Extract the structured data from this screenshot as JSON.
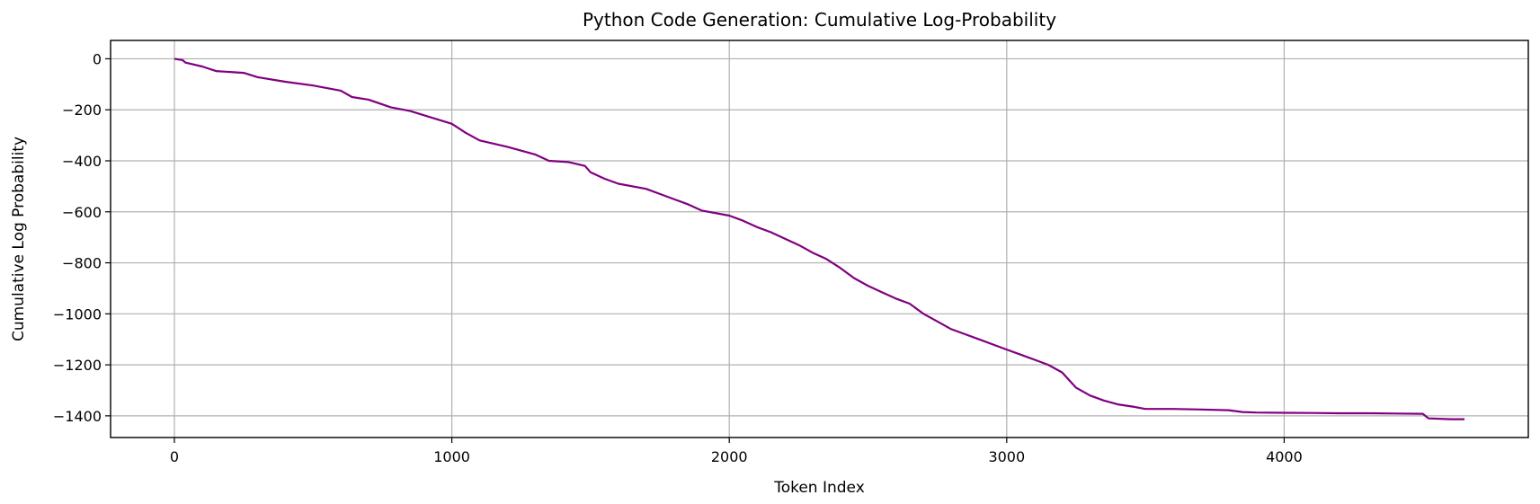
{
  "chart_data": {
    "type": "line",
    "title": "Python Code Generation: Cumulative Log-Probability",
    "xlabel": "Token Index",
    "ylabel": "Cumulative Log Probability",
    "xlim": [
      -230,
      4880
    ],
    "ylim": [
      -1485,
      72
    ],
    "xticks": [
      0,
      1000,
      2000,
      3000,
      4000
    ],
    "xtick_labels": [
      "0",
      "1000",
      "2000",
      "3000",
      "4000"
    ],
    "yticks": [
      0,
      -200,
      -400,
      -600,
      -800,
      -1000,
      -1200,
      -1400
    ],
    "ytick_labels": [
      "0",
      "−200",
      "−400",
      "−600",
      "−800",
      "−1000",
      "−1200",
      "−1400"
    ],
    "grid": true,
    "line_color": "#800080",
    "series": [
      {
        "x": [
          0,
          30,
          40,
          100,
          150,
          250,
          300,
          400,
          500,
          600,
          640,
          700,
          780,
          850,
          1000,
          1050,
          1100,
          1200,
          1300,
          1350,
          1420,
          1480,
          1500,
          1550,
          1600,
          1700,
          1750,
          1800,
          1850,
          1900,
          2000,
          2050,
          2100,
          2150,
          2200,
          2250,
          2300,
          2350,
          2400,
          2450,
          2500,
          2550,
          2600,
          2650,
          2700,
          2750,
          2800,
          2850,
          2900,
          3000,
          3050,
          3100,
          3150,
          3200,
          3250,
          3300,
          3350,
          3400,
          3460,
          3500,
          3600,
          3700,
          3800,
          3850,
          3900,
          4000,
          4100,
          4200,
          4300,
          4400,
          4500,
          4520,
          4600,
          4650
        ],
        "y": [
          0,
          -5,
          -15,
          -30,
          -48,
          -55,
          -72,
          -90,
          -105,
          -125,
          -150,
          -160,
          -190,
          -205,
          -255,
          -290,
          -320,
          -345,
          -375,
          -400,
          -405,
          -420,
          -445,
          -470,
          -490,
          -510,
          -530,
          -550,
          -570,
          -595,
          -615,
          -635,
          -660,
          -680,
          -705,
          -730,
          -760,
          -785,
          -820,
          -860,
          -890,
          -915,
          -940,
          -960,
          -1000,
          -1030,
          -1060,
          -1080,
          -1100,
          -1140,
          -1160,
          -1180,
          -1200,
          -1230,
          -1290,
          -1320,
          -1340,
          -1355,
          -1365,
          -1373,
          -1373,
          -1375,
          -1378,
          -1385,
          -1387,
          -1388,
          -1389,
          -1390,
          -1390,
          -1391,
          -1392,
          -1410,
          -1413,
          -1413
        ]
      }
    ]
  }
}
